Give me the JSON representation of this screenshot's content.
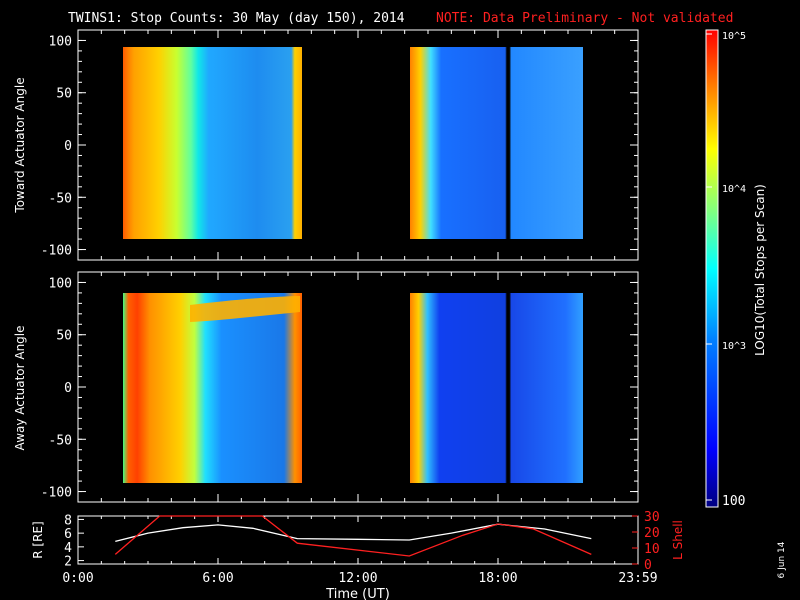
{
  "header": {
    "title": "TWINS1: Stop Counts: 30 May (day 150), 2014",
    "note": "NOTE: Data Preliminary - Not validated",
    "note_color": "#ff2020"
  },
  "side_date": "6 Jun 14",
  "chart_data": [
    {
      "type": "heatmap",
      "panel": "top",
      "ylabel": "Toward Actuator Angle",
      "ylim": [
        -110,
        110
      ],
      "yticks": [
        "100",
        "50",
        "0",
        "-50",
        "-100"
      ],
      "xlim_hours": [
        0,
        24
      ],
      "data_blocks": [
        {
          "t_start": 1.6,
          "t_end": 9.5,
          "angle_min": -88,
          "angle_max": 90
        },
        {
          "t_start": 14.2,
          "t_end": 22.0,
          "angle_min": -88,
          "angle_max": 90
        }
      ]
    },
    {
      "type": "heatmap",
      "panel": "middle",
      "ylabel": "Away Actuator Angle",
      "ylim": [
        -110,
        110
      ],
      "yticks": [
        "100",
        "50",
        "0",
        "-50",
        "-100"
      ],
      "xlim_hours": [
        0,
        24
      ],
      "data_blocks": [
        {
          "t_start": 1.6,
          "t_end": 9.5,
          "angle_min": -88,
          "angle_max": 90
        },
        {
          "t_start": 14.2,
          "t_end": 22.0,
          "angle_min": -88,
          "angle_max": 90
        }
      ]
    },
    {
      "type": "line",
      "panel": "bottom",
      "ylabel_left": "R [RE]",
      "ylabel_right": "L Shell",
      "ylim_left": [
        1.5,
        8.5
      ],
      "ylim_right": [
        0,
        30
      ],
      "yticks_left": [
        "8",
        "6",
        "4",
        "2"
      ],
      "yticks_right": [
        "30",
        "20",
        "10",
        "0"
      ],
      "right_axis_color": "#ff2020",
      "series": [
        {
          "axis": "left",
          "color": "#ffffff",
          "x": [
            1.6,
            3,
            4.5,
            6,
            7.5,
            9.4,
            12,
            14.2,
            16,
            18,
            20,
            22
          ],
          "values": [
            4.8,
            6.0,
            6.8,
            7.2,
            6.7,
            5.2,
            5.1,
            5.0,
            6.0,
            7.3,
            6.6,
            5.2
          ]
        },
        {
          "axis": "right",
          "color": "#ff2020",
          "x": [
            1.6,
            3.5,
            7.9,
            9.4,
            14.2,
            16.5,
            18,
            19.5,
            22
          ],
          "values": [
            6,
            32,
            32,
            13,
            5,
            18,
            25,
            22,
            6
          ]
        }
      ]
    }
  ],
  "xaxis": {
    "label": "Time (UT)",
    "ticks": [
      {
        "hour": 0,
        "label": "0:00"
      },
      {
        "hour": 6,
        "label": "6:00"
      },
      {
        "hour": 12,
        "label": "12:00"
      },
      {
        "hour": 18,
        "label": "18:00"
      },
      {
        "hour": 24,
        "label": "23:59"
      }
    ]
  },
  "colorbar": {
    "label": "LOG10(Total Stops per Scan)",
    "ticks": [
      "10^5",
      "10^4",
      "10^3",
      "100"
    ]
  }
}
